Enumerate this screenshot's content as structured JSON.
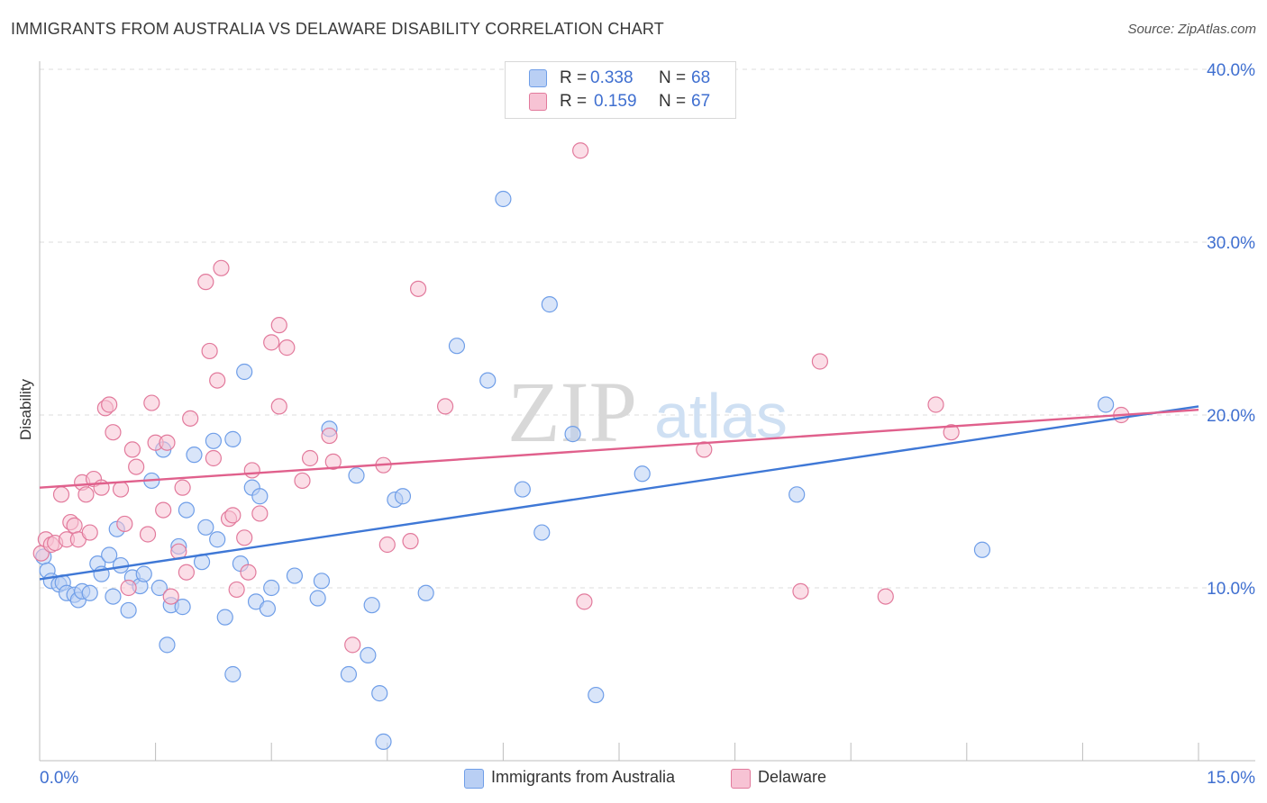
{
  "header": {
    "title": "IMMIGRANTS FROM AUSTRALIA VS DELAWARE DISABILITY CORRELATION CHART",
    "source": "Source: ZipAtlas.com"
  },
  "watermark": {
    "zip": "ZIP",
    "atlas": "atlas"
  },
  "legend": {
    "r_label": "R =",
    "n_label": "N =",
    "series": [
      {
        "name": "Immigrants from Australia",
        "r": "0.338",
        "n": "68",
        "color": "#6f9ee8",
        "fill": "#b9cff4"
      },
      {
        "name": "Delaware",
        "r": "0.159",
        "n": "67",
        "color": "#e27a9c",
        "fill": "#f7c3d4"
      }
    ]
  },
  "chart_data": {
    "type": "scatter",
    "title": "IMMIGRANTS FROM AUSTRALIA VS DELAWARE DISABILITY CORRELATION CHART",
    "xlabel": "",
    "ylabel": "Disability",
    "xlim": [
      0,
      15
    ],
    "ylim": [
      0,
      40
    ],
    "x_tick_labels": [
      "0.0%",
      "15.0%"
    ],
    "y_ticks": [
      10,
      20,
      30,
      40
    ],
    "y_tick_labels": [
      "10.0%",
      "20.0%",
      "30.0%",
      "40.0%"
    ],
    "grid": true,
    "series": [
      {
        "name": "Immigrants from Australia",
        "color": "#3f78d6",
        "trend": [
          [
            0,
            10.5
          ],
          [
            15,
            20.5
          ]
        ],
        "points": [
          [
            0.05,
            11.8
          ],
          [
            0.1,
            11.0
          ],
          [
            0.15,
            10.4
          ],
          [
            0.25,
            10.2
          ],
          [
            0.3,
            10.3
          ],
          [
            0.35,
            9.7
          ],
          [
            0.45,
            9.6
          ],
          [
            0.5,
            9.3
          ],
          [
            0.55,
            9.8
          ],
          [
            0.65,
            9.7
          ],
          [
            0.75,
            11.4
          ],
          [
            0.8,
            10.8
          ],
          [
            0.9,
            11.9
          ],
          [
            0.95,
            9.5
          ],
          [
            1.0,
            13.4
          ],
          [
            1.05,
            11.3
          ],
          [
            1.15,
            8.7
          ],
          [
            1.2,
            10.6
          ],
          [
            1.3,
            10.1
          ],
          [
            1.35,
            10.8
          ],
          [
            1.45,
            16.2
          ],
          [
            1.55,
            10.0
          ],
          [
            1.6,
            18.0
          ],
          [
            1.65,
            6.7
          ],
          [
            1.7,
            9.0
          ],
          [
            1.8,
            12.4
          ],
          [
            1.85,
            8.9
          ],
          [
            1.9,
            14.5
          ],
          [
            2.0,
            17.7
          ],
          [
            2.1,
            11.5
          ],
          [
            2.15,
            13.5
          ],
          [
            2.25,
            18.5
          ],
          [
            2.3,
            12.8
          ],
          [
            2.4,
            8.3
          ],
          [
            2.5,
            18.6
          ],
          [
            2.5,
            5.0
          ],
          [
            2.6,
            11.4
          ],
          [
            2.65,
            22.5
          ],
          [
            2.75,
            15.8
          ],
          [
            2.8,
            9.2
          ],
          [
            2.85,
            15.3
          ],
          [
            2.95,
            8.8
          ],
          [
            3.0,
            10.0
          ],
          [
            3.3,
            10.7
          ],
          [
            3.6,
            9.4
          ],
          [
            3.65,
            10.4
          ],
          [
            3.75,
            19.2
          ],
          [
            4.0,
            5.0
          ],
          [
            4.1,
            16.5
          ],
          [
            4.25,
            6.1
          ],
          [
            4.3,
            9.0
          ],
          [
            4.4,
            3.9
          ],
          [
            4.45,
            1.1
          ],
          [
            4.6,
            15.1
          ],
          [
            4.7,
            15.3
          ],
          [
            5.0,
            9.7
          ],
          [
            5.4,
            24.0
          ],
          [
            5.8,
            22.0
          ],
          [
            6.0,
            32.5
          ],
          [
            6.25,
            15.7
          ],
          [
            6.5,
            13.2
          ],
          [
            6.6,
            26.4
          ],
          [
            6.9,
            18.9
          ],
          [
            7.2,
            3.8
          ],
          [
            7.8,
            16.6
          ],
          [
            9.8,
            15.4
          ],
          [
            12.2,
            12.2
          ],
          [
            13.8,
            20.6
          ]
        ]
      },
      {
        "name": "Delaware",
        "color": "#e0608c",
        "trend": [
          [
            0,
            15.8
          ],
          [
            15,
            20.3
          ]
        ],
        "points": [
          [
            0.02,
            12.0
          ],
          [
            0.08,
            12.8
          ],
          [
            0.15,
            12.5
          ],
          [
            0.2,
            12.6
          ],
          [
            0.28,
            15.4
          ],
          [
            0.35,
            12.8
          ],
          [
            0.4,
            13.8
          ],
          [
            0.45,
            13.6
          ],
          [
            0.5,
            12.8
          ],
          [
            0.55,
            16.1
          ],
          [
            0.6,
            15.4
          ],
          [
            0.65,
            13.2
          ],
          [
            0.7,
            16.3
          ],
          [
            0.8,
            15.8
          ],
          [
            0.85,
            20.4
          ],
          [
            0.9,
            20.6
          ],
          [
            0.95,
            19.0
          ],
          [
            1.05,
            15.7
          ],
          [
            1.1,
            13.7
          ],
          [
            1.15,
            10.0
          ],
          [
            1.2,
            18.0
          ],
          [
            1.25,
            17.0
          ],
          [
            1.4,
            13.1
          ],
          [
            1.45,
            20.7
          ],
          [
            1.5,
            18.4
          ],
          [
            1.6,
            14.5
          ],
          [
            1.65,
            18.4
          ],
          [
            1.7,
            9.5
          ],
          [
            1.8,
            12.1
          ],
          [
            1.85,
            15.8
          ],
          [
            1.9,
            10.9
          ],
          [
            1.95,
            19.8
          ],
          [
            2.15,
            27.7
          ],
          [
            2.2,
            23.7
          ],
          [
            2.25,
            17.5
          ],
          [
            2.3,
            22.0
          ],
          [
            2.35,
            28.5
          ],
          [
            2.45,
            14.0
          ],
          [
            2.5,
            14.2
          ],
          [
            2.55,
            9.9
          ],
          [
            2.65,
            12.9
          ],
          [
            2.7,
            10.9
          ],
          [
            2.75,
            16.8
          ],
          [
            2.85,
            14.3
          ],
          [
            3.0,
            24.2
          ],
          [
            3.1,
            25.2
          ],
          [
            3.1,
            20.5
          ],
          [
            3.2,
            23.9
          ],
          [
            3.4,
            16.2
          ],
          [
            3.5,
            17.5
          ],
          [
            3.75,
            18.8
          ],
          [
            3.8,
            17.3
          ],
          [
            4.05,
            6.7
          ],
          [
            4.45,
            17.1
          ],
          [
            4.5,
            12.5
          ],
          [
            4.8,
            12.7
          ],
          [
            4.9,
            27.3
          ],
          [
            5.25,
            20.5
          ],
          [
            7.0,
            35.3
          ],
          [
            7.05,
            9.2
          ],
          [
            8.6,
            18.0
          ],
          [
            9.85,
            9.8
          ],
          [
            10.1,
            23.1
          ],
          [
            10.95,
            9.5
          ],
          [
            11.6,
            20.6
          ],
          [
            11.8,
            19.0
          ],
          [
            14.0,
            20.0
          ]
        ]
      }
    ]
  }
}
